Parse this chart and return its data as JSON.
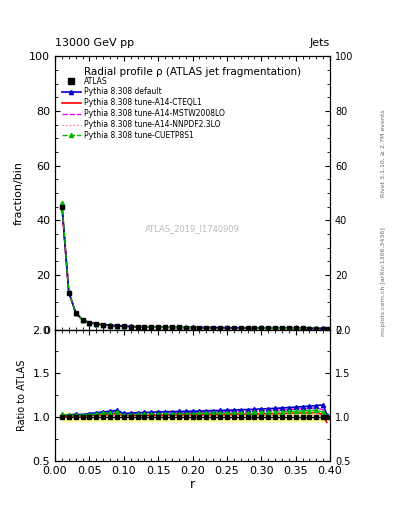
{
  "title_top_left": "13000 GeV pp",
  "title_top_right": "Jets",
  "plot_title": "Radial profile ρ (ATLAS jet fragmentation)",
  "ylabel_main": "fraction/bin",
  "ylabel_ratio": "Ratio to ATLAS",
  "xlabel": "r",
  "watermark": "ATLAS_2019_I1740909",
  "rivet_label": "Rivet 3.1.10, ≥ 2.7M events",
  "mcplots_label": "mcplots.cern.ch [arXiv:1306.3436]",
  "ylim_main": [
    0,
    100
  ],
  "ylim_ratio": [
    0.5,
    2.0
  ],
  "yticks_main": [
    0,
    20,
    40,
    60,
    80,
    100
  ],
  "yticks_ratio": [
    0.5,
    1.0,
    1.5,
    2.0
  ],
  "xlim": [
    0,
    0.4
  ],
  "r_values": [
    0.01,
    0.02,
    0.03,
    0.04,
    0.05,
    0.06,
    0.07,
    0.08,
    0.09,
    0.1,
    0.11,
    0.12,
    0.13,
    0.14,
    0.15,
    0.16,
    0.17,
    0.18,
    0.19,
    0.2,
    0.21,
    0.22,
    0.23,
    0.24,
    0.25,
    0.26,
    0.27,
    0.28,
    0.29,
    0.3,
    0.31,
    0.32,
    0.33,
    0.34,
    0.35,
    0.36,
    0.37,
    0.38,
    0.39,
    0.395
  ],
  "atlas_data": [
    45.0,
    13.5,
    6.0,
    3.5,
    2.5,
    2.0,
    1.7,
    1.5,
    1.3,
    1.2,
    1.1,
    1.0,
    0.95,
    0.9,
    0.85,
    0.82,
    0.8,
    0.78,
    0.76,
    0.74,
    0.72,
    0.7,
    0.68,
    0.66,
    0.64,
    0.62,
    0.6,
    0.58,
    0.56,
    0.54,
    0.52,
    0.5,
    0.48,
    0.46,
    0.44,
    0.42,
    0.4,
    0.38,
    0.36,
    0.34
  ],
  "default_data": [
    46.0,
    13.8,
    6.2,
    3.6,
    2.6,
    2.1,
    1.8,
    1.6,
    1.4,
    1.25,
    1.15,
    1.05,
    1.0,
    0.95,
    0.9,
    0.87,
    0.85,
    0.83,
    0.81,
    0.79,
    0.77,
    0.75,
    0.73,
    0.71,
    0.69,
    0.67,
    0.65,
    0.63,
    0.61,
    0.59,
    0.57,
    0.55,
    0.53,
    0.51,
    0.49,
    0.47,
    0.45,
    0.43,
    0.41,
    0.35
  ],
  "cteql1_data": [
    45.2,
    13.6,
    6.1,
    3.55,
    2.55,
    2.05,
    1.75,
    1.55,
    1.35,
    1.22,
    1.12,
    1.02,
    0.97,
    0.92,
    0.87,
    0.84,
    0.82,
    0.8,
    0.78,
    0.76,
    0.74,
    0.72,
    0.7,
    0.68,
    0.66,
    0.64,
    0.62,
    0.6,
    0.58,
    0.56,
    0.54,
    0.52,
    0.5,
    0.48,
    0.46,
    0.44,
    0.42,
    0.4,
    0.37,
    0.32
  ],
  "mstw_data": [
    45.3,
    13.7,
    6.15,
    3.58,
    2.58,
    2.08,
    1.78,
    1.58,
    1.38,
    1.24,
    1.14,
    1.04,
    0.99,
    0.94,
    0.89,
    0.86,
    0.84,
    0.82,
    0.8,
    0.78,
    0.76,
    0.74,
    0.72,
    0.7,
    0.68,
    0.66,
    0.64,
    0.62,
    0.6,
    0.58,
    0.56,
    0.54,
    0.52,
    0.5,
    0.48,
    0.46,
    0.44,
    0.42,
    0.39,
    0.34
  ],
  "nnpdf_data": [
    45.1,
    13.55,
    6.05,
    3.52,
    2.52,
    2.02,
    1.72,
    1.52,
    1.32,
    1.21,
    1.11,
    1.01,
    0.96,
    0.91,
    0.86,
    0.83,
    0.81,
    0.79,
    0.77,
    0.75,
    0.73,
    0.71,
    0.69,
    0.67,
    0.65,
    0.63,
    0.61,
    0.59,
    0.57,
    0.55,
    0.53,
    0.51,
    0.49,
    0.47,
    0.45,
    0.43,
    0.41,
    0.39,
    0.37,
    0.33
  ],
  "cuetp_data": [
    46.5,
    13.75,
    6.12,
    3.57,
    2.57,
    2.07,
    1.77,
    1.57,
    1.37,
    1.23,
    1.13,
    1.03,
    0.98,
    0.93,
    0.88,
    0.85,
    0.83,
    0.81,
    0.79,
    0.77,
    0.75,
    0.73,
    0.71,
    0.69,
    0.67,
    0.65,
    0.63,
    0.61,
    0.59,
    0.57,
    0.55,
    0.53,
    0.51,
    0.49,
    0.47,
    0.45,
    0.43,
    0.41,
    0.38,
    0.345
  ],
  "atlas_color": "#000000",
  "default_color": "#0000cc",
  "cteql1_color": "#ff0000",
  "mstw_color": "#ff00ff",
  "nnpdf_color": "#ff69b4",
  "cuetp_color": "#00bb00",
  "band_color": "#ffff99",
  "legend_labels": [
    "ATLAS",
    "Pythia 8.308 default",
    "Pythia 8.308 tune-A14-CTEQL1",
    "Pythia 8.308 tune-A14-MSTW2008LO",
    "Pythia 8.308 tune-A14-NNPDF2.3LO",
    "Pythia 8.308 tune-CUETP8S1"
  ]
}
